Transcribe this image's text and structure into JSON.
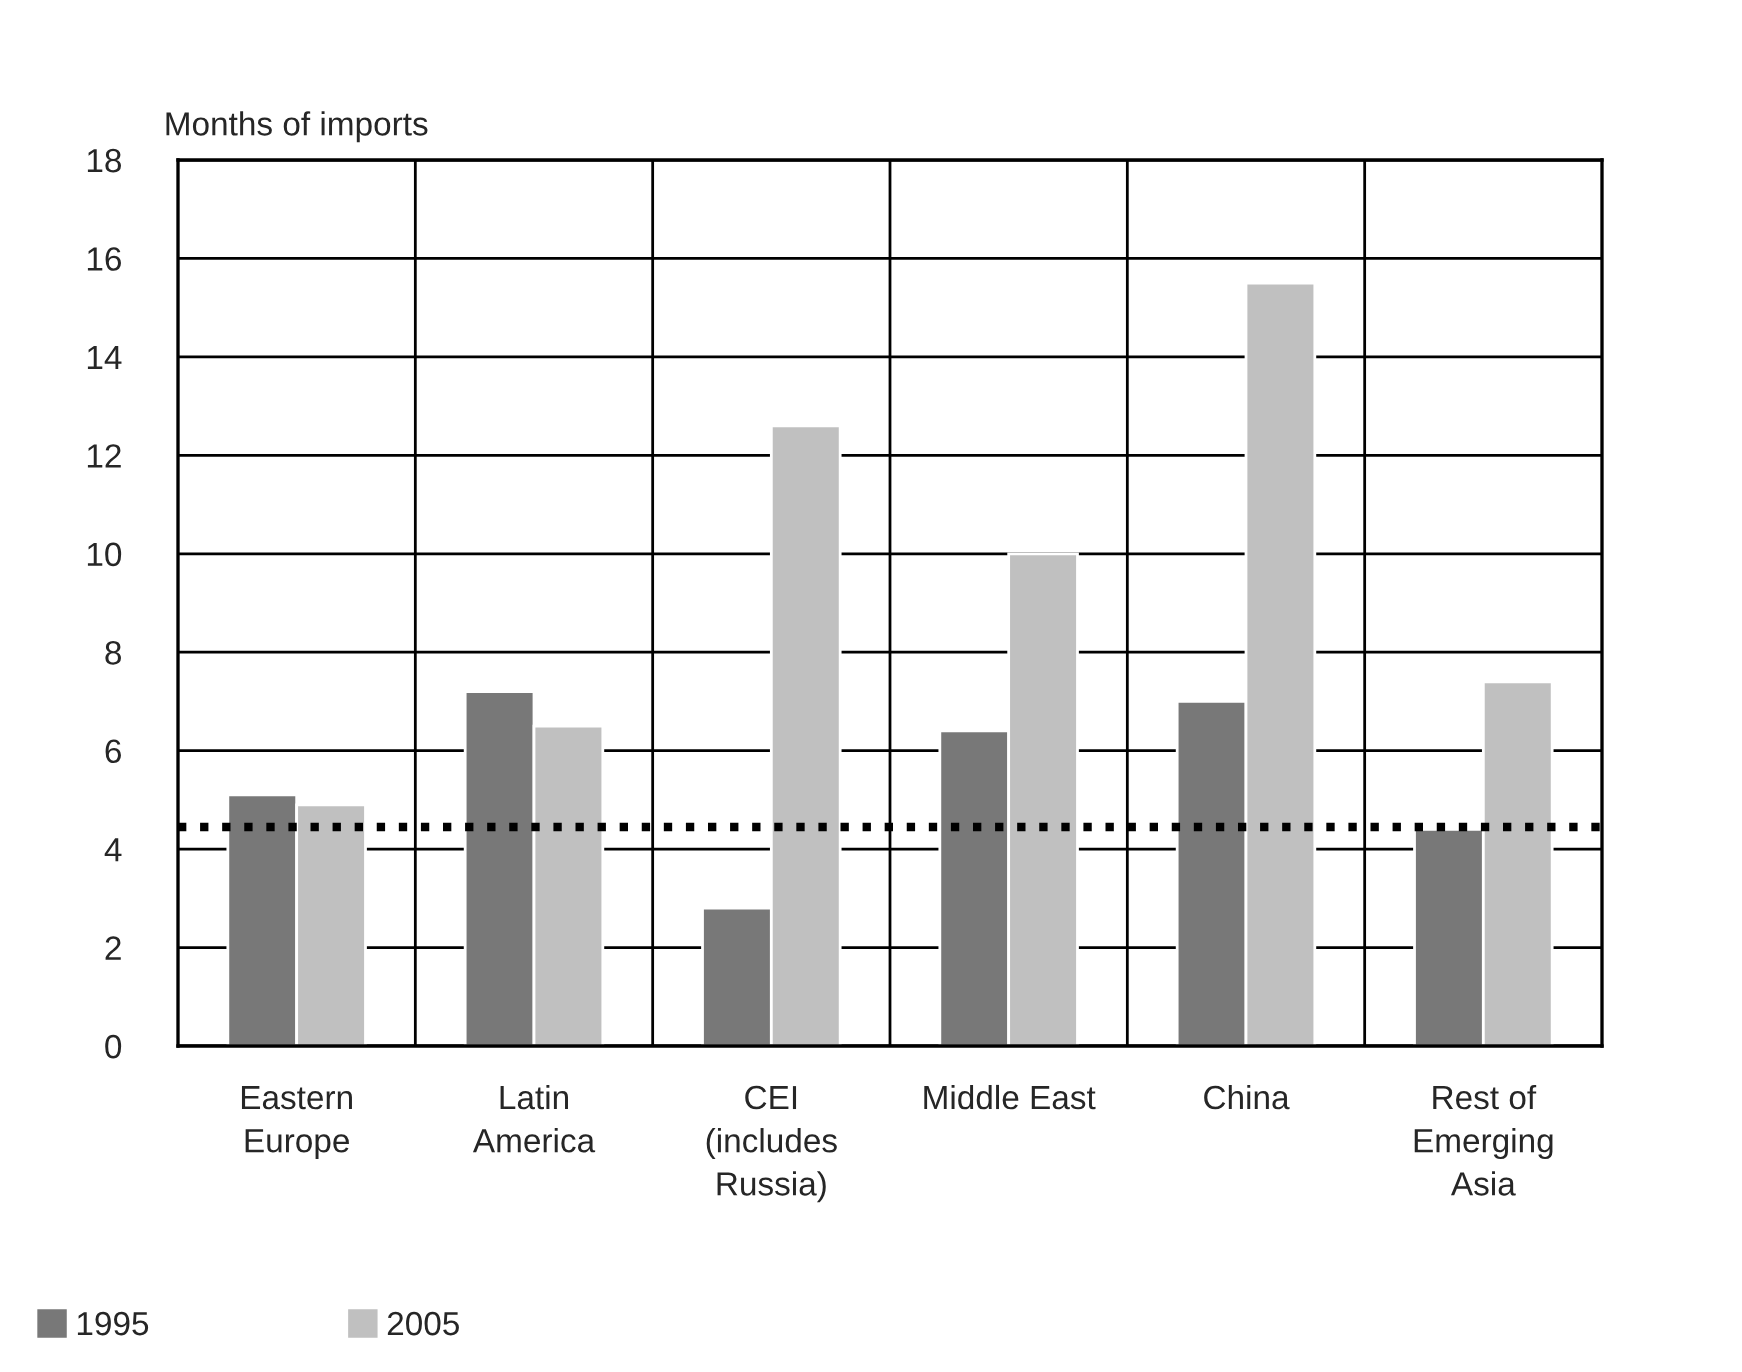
{
  "chart_data": {
    "type": "bar",
    "ylabel": "Months of imports",
    "categories": [
      "Eastern\nEurope",
      "Latin\nAmerica",
      "CEI\n(includes\nRussia)",
      "Middle East",
      "China",
      "Rest of\nEmerging\nAsia"
    ],
    "series": [
      {
        "name": "1995",
        "color": "#787878",
        "values": [
          5.1,
          7.2,
          2.8,
          6.4,
          7.0,
          4.4
        ]
      },
      {
        "name": "2005",
        "color": "#c0c0c0",
        "values": [
          4.9,
          6.5,
          12.6,
          10.0,
          15.5,
          7.4
        ]
      }
    ],
    "ylim": [
      0,
      18
    ],
    "yticks": [
      0,
      2,
      4,
      6,
      8,
      10,
      12,
      14,
      16,
      18
    ],
    "ref_lines": [
      {
        "axis": "y",
        "value": 4.45,
        "color": "#000000",
        "line_style": "dotted"
      }
    ],
    "grid": true,
    "legend": "bottom left"
  }
}
